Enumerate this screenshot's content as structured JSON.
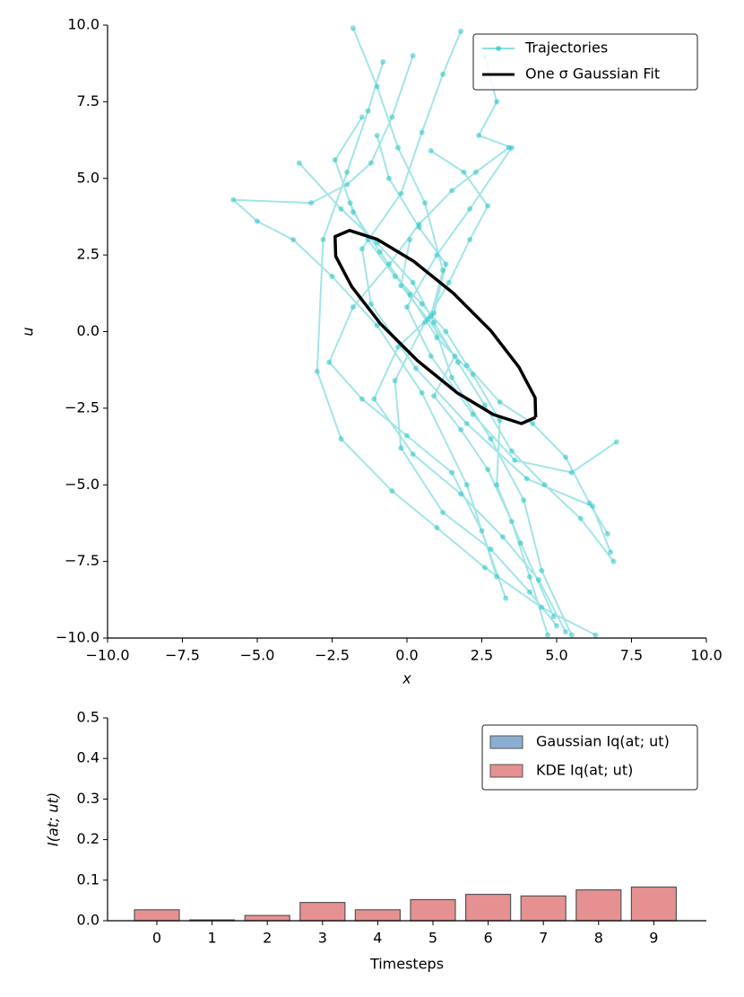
{
  "chart_data": [
    {
      "type": "line",
      "xlabel": "x",
      "ylabel": "u",
      "xlim": [
        -10,
        10
      ],
      "ylim": [
        -10,
        10
      ],
      "xticks": [
        {
          "value": -10,
          "label": "−10.0"
        },
        {
          "value": -7.5,
          "label": "−7.5"
        },
        {
          "value": -5,
          "label": "−5.0"
        },
        {
          "value": -2.5,
          "label": "−2.5"
        },
        {
          "value": 0,
          "label": "0.0"
        },
        2.5,
        {
          "value": 5,
          "label": "5.0"
        },
        7.5,
        {
          "value": 10,
          "label": "10.0"
        }
      ],
      "yticks": [
        {
          "value": -10,
          "label": "−10.0"
        },
        {
          "value": -7.5,
          "label": "−7.5"
        },
        {
          "value": -5,
          "label": "−5.0"
        },
        {
          "value": -2.5,
          "label": "−2.5"
        },
        {
          "value": 0,
          "label": "0.0"
        },
        2.5,
        {
          "value": 5,
          "label": "5.0"
        },
        7.5,
        {
          "value": 10,
          "label": "10.0"
        }
      ],
      "legend": "upper right",
      "series": [
        {
          "name": "Trajectories",
          "color": "#17bfc4",
          "markers": true,
          "x": [
            0.2,
            -0.5,
            -1.2,
            -2.0,
            -3.2,
            -5.8,
            -5.0,
            -3.8,
            -2.5,
            -1.0,
            0.5,
            2.0,
            3.0,
            null,
            -1.8,
            -1.0,
            -0.3,
            0.6,
            1.2,
            0.8,
            1.5,
            2.8,
            3.9,
            4.5,
            5.5,
            null,
            1.8,
            1.2,
            0.5,
            -0.2,
            -1.5,
            -1.2,
            0.3,
            2.0,
            4.0,
            6.2,
            6.8,
            null,
            -0.8,
            -1.3,
            -2.0,
            -2.8,
            -3.0,
            -2.2,
            -0.5,
            1.0,
            2.6,
            4.5,
            6.3,
            null,
            2.6,
            3.0,
            2.4,
            3.5,
            2.1,
            1.0,
            0.0,
            0.8,
            2.2,
            3.6,
            5.5,
            7.0,
            null,
            -1.0,
            -0.6,
            0.4,
            1.3,
            0.9,
            -0.3,
            -1.1,
            0.2,
            1.8,
            3.2,
            4.4,
            5.3,
            null,
            -3.6,
            -2.2,
            -1.0,
            0.2,
            0.9,
            1.7,
            2.6,
            3.5,
            4.6,
            5.8,
            6.9,
            null,
            0.8,
            1.9,
            2.7,
            2.1,
            1.4,
            0.6,
            -0.4,
            -0.2,
            1.2,
            2.8,
            4.1,
            5.0,
            null,
            -1.5,
            -2.4,
            -1.8,
            -0.9,
            0.1,
            1.0,
            2.2,
            3.1,
            3.0,
            3.8,
            4.9,
            null,
            3.4,
            2.3,
            1.5,
            0.4,
            -0.6,
            -1.8,
            -2.6,
            -1.5,
            0.0,
            1.5,
            2.5,
            3.3,
            null,
            -1.9,
            -1.3,
            -0.4,
            0.5,
            1.3,
            2.0,
            3.1,
            4.2,
            5.3,
            6.1,
            6.7,
            null,
            0.1,
            -0.2,
            0.7,
            1.6,
            0.9,
            1.8,
            2.7,
            3.5,
            4.1,
            4.7
          ],
          "values": [
            9.0,
            7.0,
            5.5,
            4.8,
            4.2,
            4.3,
            3.6,
            3.0,
            1.8,
            0.2,
            -2.0,
            -5.0,
            -8.0,
            null,
            9.9,
            8.0,
            6.0,
            4.2,
            2.0,
            0.5,
            -1.5,
            -3.5,
            -5.5,
            -7.8,
            -9.9,
            null,
            9.8,
            8.4,
            6.5,
            4.5,
            2.7,
            0.9,
            -1.2,
            -3.0,
            -4.8,
            -5.7,
            -7.2,
            null,
            8.8,
            7.2,
            5.2,
            3.0,
            -1.3,
            -3.5,
            -5.2,
            -6.4,
            -7.7,
            -9.0,
            -9.9,
            null,
            9.0,
            7.5,
            6.4,
            6.0,
            4.0,
            2.5,
            0.8,
            -0.8,
            -2.7,
            -4.2,
            -4.6,
            -3.6,
            null,
            6.4,
            5.0,
            3.4,
            2.2,
            0.6,
            -0.5,
            -2.2,
            -4.0,
            -5.3,
            -6.7,
            -8.1,
            -9.8,
            null,
            5.5,
            4.0,
            2.9,
            1.6,
            0.3,
            -1.0,
            -2.4,
            -3.9,
            -5.0,
            -6.1,
            -7.5,
            null,
            5.9,
            5.2,
            4.1,
            3.0,
            1.6,
            0.3,
            -1.6,
            -3.8,
            -5.9,
            -7.1,
            -8.5,
            -9.6,
            null,
            7.0,
            5.6,
            3.9,
            2.6,
            1.2,
            -0.2,
            -1.4,
            -2.9,
            -5.0,
            -6.9,
            -9.3,
            null,
            6.0,
            5.2,
            4.6,
            3.5,
            2.2,
            0.8,
            -1.0,
            -2.2,
            -3.4,
            -4.6,
            -6.5,
            -8.7,
            null,
            4.2,
            3.0,
            1.8,
            0.9,
            0.0,
            -1.1,
            -2.3,
            -3.0,
            -4.1,
            -5.6,
            -6.6,
            null,
            3.0,
            1.5,
            0.4,
            -0.8,
            -2.1,
            -3.2,
            -4.5,
            -6.2,
            -8.0,
            -9.9
          ]
        },
        {
          "name": "One σ Gaussian Fit",
          "color": "#000000",
          "markers": false,
          "x": [
            4.3,
            4.28,
            3.74,
            2.79,
            1.55,
            0.22,
            -0.99,
            -1.92,
            -2.4,
            -2.38,
            -1.84,
            -0.89,
            0.35,
            1.68,
            2.89,
            3.82,
            4.3
          ],
          "values": [
            -2.8,
            -2.16,
            -1.16,
            0.04,
            1.25,
            2.3,
            3.01,
            3.3,
            3.1,
            2.46,
            1.46,
            0.26,
            -0.95,
            -2.0,
            -2.71,
            -3.0,
            -2.8
          ]
        }
      ]
    },
    {
      "type": "bar",
      "xlabel": "Timesteps",
      "ylabel": "I(at; ut)",
      "categories": [
        "0",
        "1",
        "2",
        "3",
        "4",
        "5",
        "6",
        "7",
        "8",
        "9"
      ],
      "ylim": [
        0,
        0.5
      ],
      "yticks": [
        {
          "value": 0,
          "label": "0.0"
        },
        0.1,
        0.2,
        0.3,
        0.4,
        0.5
      ],
      "legend": "upper right",
      "series": [
        {
          "name": "Gaussian Iq(at; ut)",
          "color": "#8aaed2",
          "values": [
            0,
            0,
            0,
            0,
            0,
            0,
            0,
            0,
            0,
            0
          ]
        },
        {
          "name": "KDE Iq(at; ut)",
          "color": "#e69191",
          "values": [
            0.027,
            0.002,
            0.013,
            0.045,
            0.027,
            0.052,
            0.065,
            0.061,
            0.076,
            0.083
          ]
        }
      ]
    }
  ]
}
